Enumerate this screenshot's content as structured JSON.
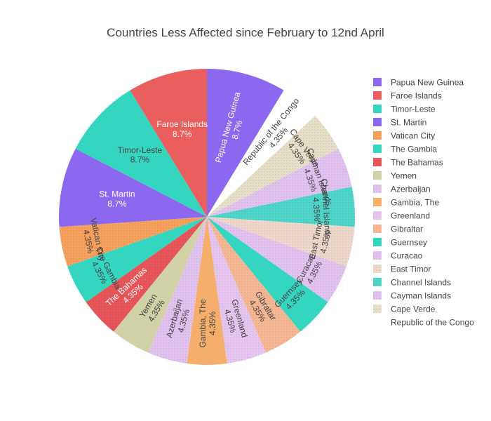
{
  "chart_data": {
    "type": "pie",
    "title": "Countries Less Affected since February to 12nd April",
    "labels": [
      "Papua New Guinea",
      "Republic of the Congo",
      "Cape Verde",
      "Cayman Islands",
      "Channel Islands",
      "East Timor",
      "Curacao",
      "Guernsey",
      "Gibraltar",
      "Greenland",
      "Gambia, The",
      " Azerbaijan",
      "Yemen",
      "The Bahamas",
      "The Gambia",
      "Vatican City",
      "St. Martin",
      "Timor-Leste",
      "Faroe Islands"
    ],
    "values": [
      2,
      1,
      1,
      1,
      1,
      1,
      1,
      1,
      1,
      1,
      1,
      1,
      1,
      1,
      1,
      1,
      2,
      2,
      2
    ],
    "percent_labels": [
      "8.7%",
      "4.35%",
      "4.35%",
      "4.35%",
      "4.35%",
      "4.35%",
      "4.35%",
      "4.35%",
      "4.35%",
      "4.35%",
      "4.35%",
      "4.35%",
      "4.35%",
      "4.35%",
      "4.35%",
      "4.35%",
      "8.7%",
      "8.7%",
      "8.7%"
    ],
    "colors": [
      "#8c68f0",
      "#ffffff",
      "#e6e0c8",
      "#e2c3ef",
      "#4fd6cb",
      "#eed8cc",
      "#e2c3ef",
      "#35d6c0",
      "#f6b894",
      "#e6c6f0",
      "#f6ae6c",
      "#e2c3ef",
      "#d0d2a6",
      "#e8565a",
      "#35d6c0",
      "#f7a15e",
      "#8c68f0",
      "#35d6c0",
      "#ea5f5e"
    ],
    "patterned": [
      false,
      false,
      true,
      true,
      true,
      true,
      true,
      false,
      true,
      true,
      false,
      true,
      false,
      true,
      false,
      true,
      false,
      false,
      false
    ],
    "text_rotation": [
      "radial",
      "radial",
      "tangential",
      "tangential",
      "tangential",
      "tangential",
      "tangential",
      "tangential",
      "radial",
      "radial",
      "radial",
      "radial",
      "radial",
      "radial",
      "tangential",
      "tangential",
      "horizontal",
      "horizontal",
      "horizontal"
    ],
    "legend": {
      "position": "right",
      "entries": [
        "Papua New Guinea",
        "Faroe Islands",
        "Timor-Leste",
        "St. Martin",
        "Vatican City",
        "The Gambia",
        "The Bahamas",
        "Yemen",
        " Azerbaijan",
        "Gambia, The",
        "Greenland",
        "Gibraltar",
        "Guernsey",
        "Curacao",
        "East Timor",
        "Channel Islands",
        "Cayman Islands",
        "Cape Verde",
        "Republic of the Congo"
      ]
    },
    "direction": "clockwise",
    "sort": "descending"
  }
}
